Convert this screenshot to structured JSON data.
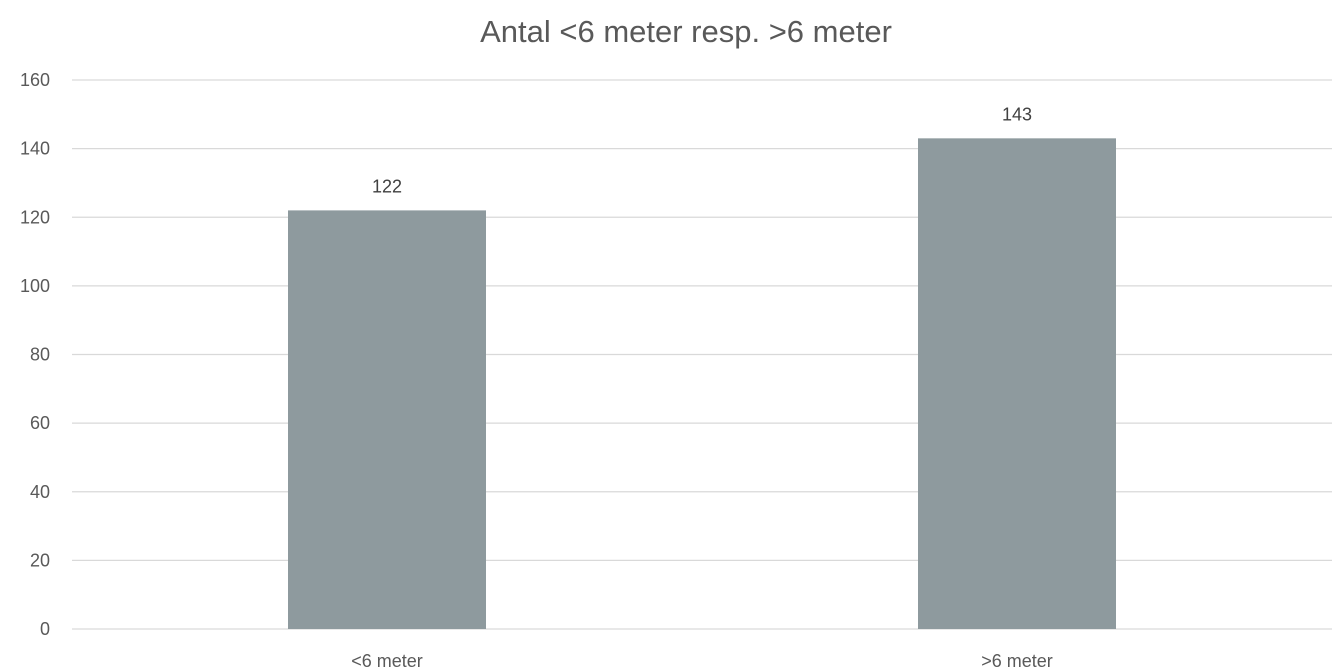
{
  "chart_data": {
    "type": "bar",
    "title": "Antal <6 meter resp. >6 meter",
    "categories": [
      "<6 meter",
      ">6 meter"
    ],
    "values": [
      122,
      143
    ],
    "data_labels": [
      "122",
      "143"
    ],
    "ylim": [
      0,
      160
    ],
    "yticks": [
      0,
      20,
      40,
      60,
      80,
      100,
      120,
      140,
      160
    ],
    "ytick_labels": [
      "0",
      "20",
      "40",
      "60",
      "80",
      "100",
      "120",
      "140",
      "160"
    ],
    "grid": true,
    "legend": "none",
    "bar_color": "#8e9a9e"
  }
}
